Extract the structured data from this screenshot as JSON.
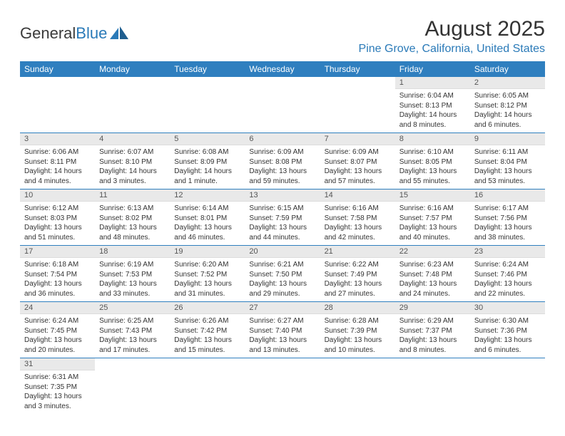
{
  "brand": {
    "first": "General",
    "second": "Blue"
  },
  "title": "August 2025",
  "location": "Pine Grove, California, United States",
  "accent_color": "#2f7fbf",
  "header_bg": "#e9e9e9",
  "weekdays": [
    "Sunday",
    "Monday",
    "Tuesday",
    "Wednesday",
    "Thursday",
    "Friday",
    "Saturday"
  ],
  "weeks": [
    [
      null,
      null,
      null,
      null,
      null,
      {
        "n": "1",
        "sr": "Sunrise: 6:04 AM",
        "ss": "Sunset: 8:13 PM",
        "dl": "Daylight: 14 hours and 8 minutes."
      },
      {
        "n": "2",
        "sr": "Sunrise: 6:05 AM",
        "ss": "Sunset: 8:12 PM",
        "dl": "Daylight: 14 hours and 6 minutes."
      }
    ],
    [
      {
        "n": "3",
        "sr": "Sunrise: 6:06 AM",
        "ss": "Sunset: 8:11 PM",
        "dl": "Daylight: 14 hours and 4 minutes."
      },
      {
        "n": "4",
        "sr": "Sunrise: 6:07 AM",
        "ss": "Sunset: 8:10 PM",
        "dl": "Daylight: 14 hours and 3 minutes."
      },
      {
        "n": "5",
        "sr": "Sunrise: 6:08 AM",
        "ss": "Sunset: 8:09 PM",
        "dl": "Daylight: 14 hours and 1 minute."
      },
      {
        "n": "6",
        "sr": "Sunrise: 6:09 AM",
        "ss": "Sunset: 8:08 PM",
        "dl": "Daylight: 13 hours and 59 minutes."
      },
      {
        "n": "7",
        "sr": "Sunrise: 6:09 AM",
        "ss": "Sunset: 8:07 PM",
        "dl": "Daylight: 13 hours and 57 minutes."
      },
      {
        "n": "8",
        "sr": "Sunrise: 6:10 AM",
        "ss": "Sunset: 8:05 PM",
        "dl": "Daylight: 13 hours and 55 minutes."
      },
      {
        "n": "9",
        "sr": "Sunrise: 6:11 AM",
        "ss": "Sunset: 8:04 PM",
        "dl": "Daylight: 13 hours and 53 minutes."
      }
    ],
    [
      {
        "n": "10",
        "sr": "Sunrise: 6:12 AM",
        "ss": "Sunset: 8:03 PM",
        "dl": "Daylight: 13 hours and 51 minutes."
      },
      {
        "n": "11",
        "sr": "Sunrise: 6:13 AM",
        "ss": "Sunset: 8:02 PM",
        "dl": "Daylight: 13 hours and 48 minutes."
      },
      {
        "n": "12",
        "sr": "Sunrise: 6:14 AM",
        "ss": "Sunset: 8:01 PM",
        "dl": "Daylight: 13 hours and 46 minutes."
      },
      {
        "n": "13",
        "sr": "Sunrise: 6:15 AM",
        "ss": "Sunset: 7:59 PM",
        "dl": "Daylight: 13 hours and 44 minutes."
      },
      {
        "n": "14",
        "sr": "Sunrise: 6:16 AM",
        "ss": "Sunset: 7:58 PM",
        "dl": "Daylight: 13 hours and 42 minutes."
      },
      {
        "n": "15",
        "sr": "Sunrise: 6:16 AM",
        "ss": "Sunset: 7:57 PM",
        "dl": "Daylight: 13 hours and 40 minutes."
      },
      {
        "n": "16",
        "sr": "Sunrise: 6:17 AM",
        "ss": "Sunset: 7:56 PM",
        "dl": "Daylight: 13 hours and 38 minutes."
      }
    ],
    [
      {
        "n": "17",
        "sr": "Sunrise: 6:18 AM",
        "ss": "Sunset: 7:54 PM",
        "dl": "Daylight: 13 hours and 36 minutes."
      },
      {
        "n": "18",
        "sr": "Sunrise: 6:19 AM",
        "ss": "Sunset: 7:53 PM",
        "dl": "Daylight: 13 hours and 33 minutes."
      },
      {
        "n": "19",
        "sr": "Sunrise: 6:20 AM",
        "ss": "Sunset: 7:52 PM",
        "dl": "Daylight: 13 hours and 31 minutes."
      },
      {
        "n": "20",
        "sr": "Sunrise: 6:21 AM",
        "ss": "Sunset: 7:50 PM",
        "dl": "Daylight: 13 hours and 29 minutes."
      },
      {
        "n": "21",
        "sr": "Sunrise: 6:22 AM",
        "ss": "Sunset: 7:49 PM",
        "dl": "Daylight: 13 hours and 27 minutes."
      },
      {
        "n": "22",
        "sr": "Sunrise: 6:23 AM",
        "ss": "Sunset: 7:48 PM",
        "dl": "Daylight: 13 hours and 24 minutes."
      },
      {
        "n": "23",
        "sr": "Sunrise: 6:24 AM",
        "ss": "Sunset: 7:46 PM",
        "dl": "Daylight: 13 hours and 22 minutes."
      }
    ],
    [
      {
        "n": "24",
        "sr": "Sunrise: 6:24 AM",
        "ss": "Sunset: 7:45 PM",
        "dl": "Daylight: 13 hours and 20 minutes."
      },
      {
        "n": "25",
        "sr": "Sunrise: 6:25 AM",
        "ss": "Sunset: 7:43 PM",
        "dl": "Daylight: 13 hours and 17 minutes."
      },
      {
        "n": "26",
        "sr": "Sunrise: 6:26 AM",
        "ss": "Sunset: 7:42 PM",
        "dl": "Daylight: 13 hours and 15 minutes."
      },
      {
        "n": "27",
        "sr": "Sunrise: 6:27 AM",
        "ss": "Sunset: 7:40 PM",
        "dl": "Daylight: 13 hours and 13 minutes."
      },
      {
        "n": "28",
        "sr": "Sunrise: 6:28 AM",
        "ss": "Sunset: 7:39 PM",
        "dl": "Daylight: 13 hours and 10 minutes."
      },
      {
        "n": "29",
        "sr": "Sunrise: 6:29 AM",
        "ss": "Sunset: 7:37 PM",
        "dl": "Daylight: 13 hours and 8 minutes."
      },
      {
        "n": "30",
        "sr": "Sunrise: 6:30 AM",
        "ss": "Sunset: 7:36 PM",
        "dl": "Daylight: 13 hours and 6 minutes."
      }
    ],
    [
      {
        "n": "31",
        "sr": "Sunrise: 6:31 AM",
        "ss": "Sunset: 7:35 PM",
        "dl": "Daylight: 13 hours and 3 minutes."
      },
      null,
      null,
      null,
      null,
      null,
      null
    ]
  ]
}
